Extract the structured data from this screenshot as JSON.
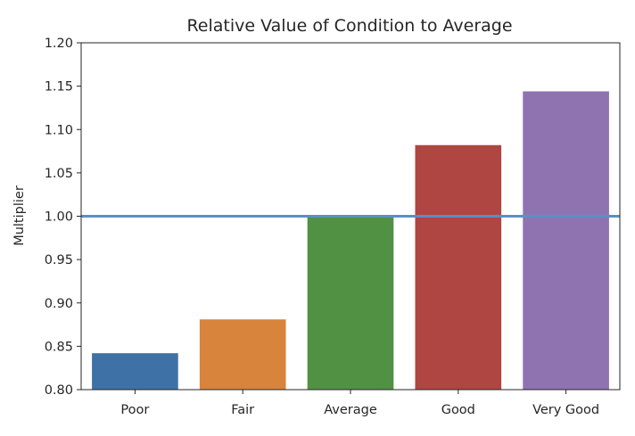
{
  "chart_data": {
    "type": "bar",
    "title": "Relative Value of Condition to Average",
    "xlabel": "",
    "ylabel": "Multiplier",
    "categories": [
      "Poor",
      "Fair",
      "Average",
      "Good",
      "Very Good"
    ],
    "values": [
      0.842,
      0.881,
      1.0,
      1.082,
      1.144
    ],
    "colors": [
      "#3e72a6",
      "#d9843c",
      "#519144",
      "#b04642",
      "#8f73b0"
    ],
    "ylim": [
      0.8,
      1.2
    ],
    "yticks": [
      "0.80",
      "0.85",
      "0.90",
      "0.95",
      "1.00",
      "1.05",
      "1.10",
      "1.15",
      "1.20"
    ],
    "reference_line": {
      "y": 1.0,
      "color": "#5b8fc4"
    },
    "grid": false,
    "legend": "none"
  }
}
